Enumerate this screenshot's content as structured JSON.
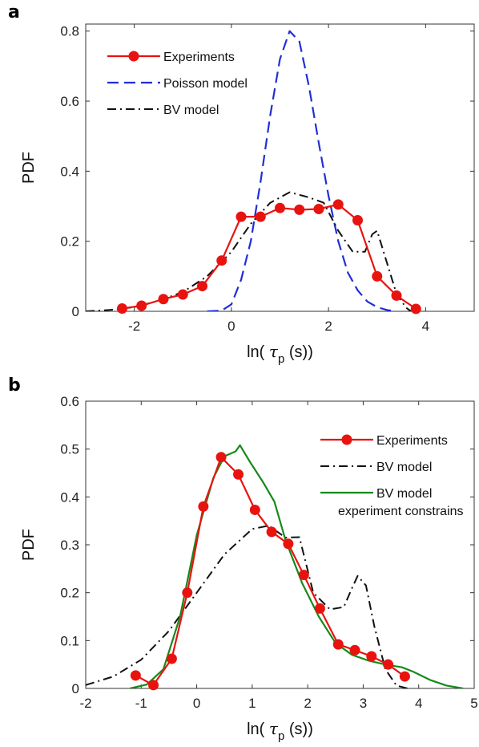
{
  "chart_data": [
    {
      "panel_label": "a",
      "type": "line",
      "xlabel": "ln( τp (s))",
      "xlabel_parts": {
        "prefix": "ln( ",
        "symbol": "τ",
        "subscript": "p",
        "suffix": " (s))"
      },
      "ylabel": "PDF",
      "xlim": [
        -3,
        5
      ],
      "ylim": [
        0,
        0.82
      ],
      "xticks": [
        "-2",
        "0",
        "2",
        "4"
      ],
      "xtick_values": [
        -2,
        0,
        2,
        4
      ],
      "yticks": [
        "0",
        "0.2",
        "0.4",
        "0.6",
        "0.8"
      ],
      "ytick_values": [
        0,
        0.2,
        0.4,
        0.6,
        0.8
      ],
      "legend_position": "top-left",
      "series": [
        {
          "name": "Experiments",
          "color": "#e8130f",
          "style": "solid-markers",
          "points": [
            [
              -2.25,
              0.008
            ],
            [
              -1.85,
              0.016
            ],
            [
              -1.4,
              0.035
            ],
            [
              -1.0,
              0.048
            ],
            [
              -0.6,
              0.072
            ],
            [
              -0.2,
              0.145
            ],
            [
              0.2,
              0.27
            ],
            [
              0.6,
              0.27
            ],
            [
              1.0,
              0.295
            ],
            [
              1.4,
              0.29
            ],
            [
              1.8,
              0.292
            ],
            [
              2.2,
              0.305
            ],
            [
              2.6,
              0.26
            ],
            [
              3.0,
              0.1
            ],
            [
              3.4,
              0.045
            ],
            [
              3.8,
              0.007
            ]
          ]
        },
        {
          "name": "Poisson model",
          "color": "#1f2fd6",
          "style": "dashed",
          "points": [
            [
              -0.5,
              0.0
            ],
            [
              -0.2,
              0.002
            ],
            [
              0.0,
              0.02
            ],
            [
              0.2,
              0.09
            ],
            [
              0.4,
              0.2
            ],
            [
              0.6,
              0.37
            ],
            [
              0.8,
              0.56
            ],
            [
              1.0,
              0.72
            ],
            [
              1.2,
              0.8
            ],
            [
              1.4,
              0.77
            ],
            [
              1.6,
              0.64
            ],
            [
              1.8,
              0.48
            ],
            [
              2.0,
              0.33
            ],
            [
              2.2,
              0.2
            ],
            [
              2.4,
              0.11
            ],
            [
              2.6,
              0.06
            ],
            [
              2.8,
              0.028
            ],
            [
              3.0,
              0.012
            ],
            [
              3.2,
              0.004
            ],
            [
              3.4,
              0.0
            ]
          ]
        },
        {
          "name": "BV model",
          "color": "#111111",
          "style": "dash-dot",
          "points": [
            [
              -3.0,
              0.0
            ],
            [
              -2.5,
              0.004
            ],
            [
              -2.0,
              0.012
            ],
            [
              -1.5,
              0.03
            ],
            [
              -1.0,
              0.055
            ],
            [
              -0.5,
              0.1
            ],
            [
              0.0,
              0.17
            ],
            [
              0.4,
              0.25
            ],
            [
              0.8,
              0.31
            ],
            [
              1.2,
              0.34
            ],
            [
              1.6,
              0.325
            ],
            [
              1.9,
              0.31
            ],
            [
              2.2,
              0.23
            ],
            [
              2.5,
              0.17
            ],
            [
              2.75,
              0.17
            ],
            [
              2.9,
              0.22
            ],
            [
              3.0,
              0.23
            ],
            [
              3.2,
              0.14
            ],
            [
              3.4,
              0.05
            ],
            [
              3.6,
              0.01
            ],
            [
              3.7,
              0.0
            ]
          ]
        }
      ]
    },
    {
      "panel_label": "b",
      "type": "line",
      "xlabel": "ln( τp (s))",
      "xlabel_parts": {
        "prefix": "ln( ",
        "symbol": "τ",
        "subscript": "p",
        "suffix": " (s))"
      },
      "ylabel": "PDF",
      "xlim": [
        -2,
        5
      ],
      "ylim": [
        0,
        0.6
      ],
      "xticks": [
        "-2",
        "-1",
        "0",
        "1",
        "2",
        "3",
        "4",
        "5"
      ],
      "xtick_values": [
        -2,
        -1,
        0,
        1,
        2,
        3,
        4,
        5
      ],
      "yticks": [
        "0",
        "0.1",
        "0.2",
        "0.3",
        "0.4",
        "0.5",
        "0.6"
      ],
      "ytick_values": [
        0,
        0.1,
        0.2,
        0.3,
        0.4,
        0.5,
        0.6
      ],
      "legend_position": "top-right",
      "series": [
        {
          "name": "Experiments",
          "color": "#e8130f",
          "style": "solid-markers",
          "points": [
            [
              -1.1,
              0.027
            ],
            [
              -0.78,
              0.007
            ],
            [
              -0.45,
              0.062
            ],
            [
              -0.17,
              0.2
            ],
            [
              0.12,
              0.38
            ],
            [
              0.44,
              0.483
            ],
            [
              0.75,
              0.447
            ],
            [
              1.05,
              0.373
            ],
            [
              1.35,
              0.327
            ],
            [
              1.65,
              0.302
            ],
            [
              1.93,
              0.237
            ],
            [
              2.22,
              0.167
            ],
            [
              2.55,
              0.092
            ],
            [
              2.85,
              0.08
            ],
            [
              3.15,
              0.067
            ],
            [
              3.45,
              0.05
            ],
            [
              3.75,
              0.025
            ]
          ]
        },
        {
          "name": "BV model",
          "color": "#111111",
          "style": "dash-dot",
          "points": [
            [
              -2.0,
              0.007
            ],
            [
              -1.5,
              0.025
            ],
            [
              -1.0,
              0.06
            ],
            [
              -0.5,
              0.12
            ],
            [
              0.0,
              0.2
            ],
            [
              0.5,
              0.28
            ],
            [
              1.0,
              0.333
            ],
            [
              1.3,
              0.34
            ],
            [
              1.6,
              0.315
            ],
            [
              1.85,
              0.316
            ],
            [
              2.1,
              0.2
            ],
            [
              2.4,
              0.165
            ],
            [
              2.65,
              0.17
            ],
            [
              2.8,
              0.21
            ],
            [
              2.9,
              0.235
            ],
            [
              3.05,
              0.215
            ],
            [
              3.2,
              0.13
            ],
            [
              3.4,
              0.04
            ],
            [
              3.6,
              0.006
            ],
            [
              3.8,
              0.0
            ]
          ]
        },
        {
          "name": "BV model\nexperiment constrains",
          "color": "#17891a",
          "style": "solid",
          "points": [
            [
              -1.2,
              0.0
            ],
            [
              -0.9,
              0.008
            ],
            [
              -0.6,
              0.04
            ],
            [
              -0.3,
              0.15
            ],
            [
              0.0,
              0.32
            ],
            [
              0.3,
              0.44
            ],
            [
              0.5,
              0.485
            ],
            [
              0.7,
              0.495
            ],
            [
              0.78,
              0.508
            ],
            [
              0.95,
              0.475
            ],
            [
              1.2,
              0.43
            ],
            [
              1.4,
              0.39
            ],
            [
              1.6,
              0.31
            ],
            [
              1.9,
              0.22
            ],
            [
              2.2,
              0.15
            ],
            [
              2.5,
              0.095
            ],
            [
              2.8,
              0.07
            ],
            [
              3.1,
              0.058
            ],
            [
              3.4,
              0.05
            ],
            [
              3.7,
              0.044
            ],
            [
              3.9,
              0.035
            ],
            [
              4.2,
              0.018
            ],
            [
              4.5,
              0.006
            ],
            [
              4.8,
              0.0
            ]
          ]
        }
      ]
    }
  ]
}
